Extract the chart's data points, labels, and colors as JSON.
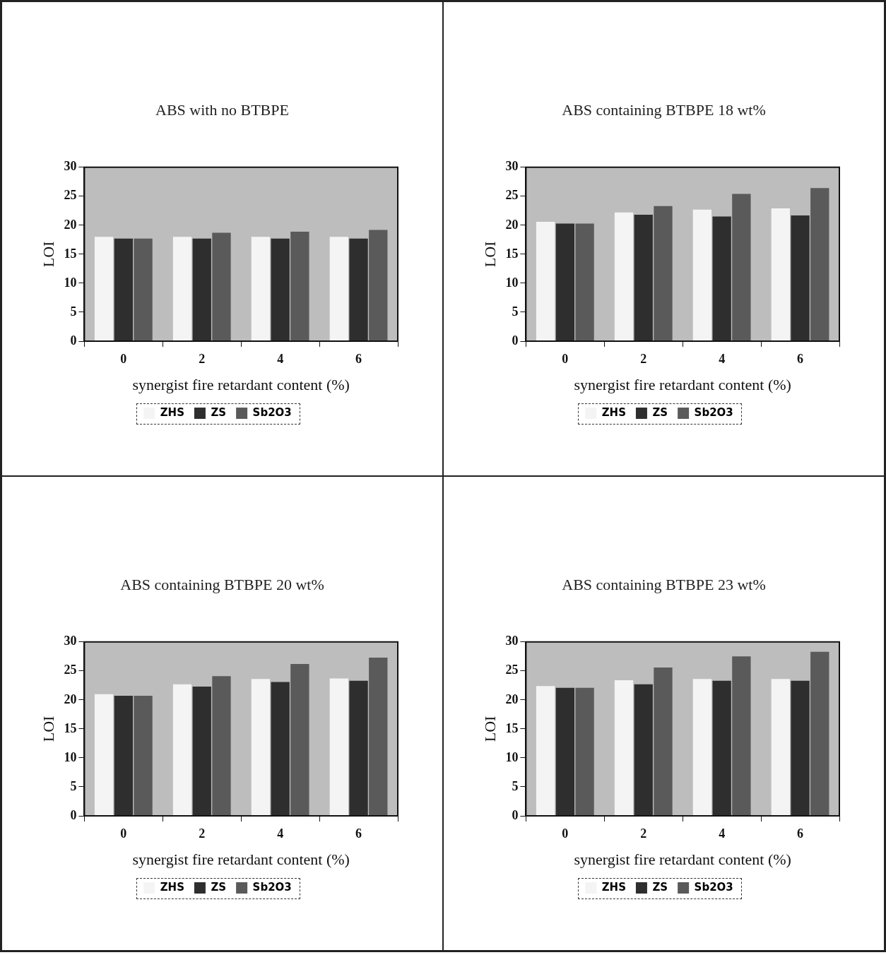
{
  "chart_data": [
    {
      "type": "bar",
      "title": "ABS with no BTBPE",
      "xlabel": "synergist fire retardant content (%)",
      "ylabel": "LOI",
      "categories": [
        "0",
        "2",
        "4",
        "6"
      ],
      "series": [
        {
          "name": "ZHS",
          "color": "#f4f4f4",
          "values": [
            18.0,
            18.0,
            18.0,
            18.0
          ]
        },
        {
          "name": "ZS",
          "color": "#2e2e2e",
          "values": [
            17.7,
            17.7,
            17.7,
            17.7
          ]
        },
        {
          "name": "Sb2O3",
          "color": "#5a5a5a",
          "values": [
            17.7,
            18.7,
            18.9,
            19.2
          ]
        }
      ],
      "ylim": [
        0,
        30
      ],
      "yticks": [
        0,
        5,
        10,
        15,
        20,
        25,
        30
      ],
      "grid": false,
      "legend": "bottom"
    },
    {
      "type": "bar",
      "title": "ABS containing BTBPE 18 wt%",
      "xlabel": "synergist fire retardant content (%)",
      "ylabel": "LOI",
      "categories": [
        "0",
        "2",
        "4",
        "6"
      ],
      "series": [
        {
          "name": "ZHS",
          "color": "#f4f4f4",
          "values": [
            20.6,
            22.2,
            22.7,
            22.9
          ]
        },
        {
          "name": "ZS",
          "color": "#2e2e2e",
          "values": [
            20.3,
            21.8,
            21.5,
            21.7
          ]
        },
        {
          "name": "Sb2O3",
          "color": "#5a5a5a",
          "values": [
            20.3,
            23.3,
            25.4,
            26.4
          ]
        }
      ],
      "ylim": [
        0,
        30
      ],
      "yticks": [
        0,
        5,
        10,
        15,
        20,
        25,
        30
      ],
      "grid": false,
      "legend": "bottom"
    },
    {
      "type": "bar",
      "title": "ABS containing BTBPE 20 wt%",
      "xlabel": "synergist fire retardant content (%)",
      "ylabel": "LOI",
      "categories": [
        "0",
        "2",
        "4",
        "6"
      ],
      "series": [
        {
          "name": "ZHS",
          "color": "#f4f4f4",
          "values": [
            21.0,
            22.7,
            23.6,
            23.7
          ]
        },
        {
          "name": "ZS",
          "color": "#2e2e2e",
          "values": [
            20.7,
            22.3,
            23.1,
            23.3
          ]
        },
        {
          "name": "Sb2O3",
          "color": "#5a5a5a",
          "values": [
            20.7,
            24.1,
            26.2,
            27.3
          ]
        }
      ],
      "ylim": [
        0,
        30
      ],
      "yticks": [
        0,
        5,
        10,
        15,
        20,
        25,
        30
      ],
      "grid": false,
      "legend": "bottom"
    },
    {
      "type": "bar",
      "title": "ABS containing BTBPE 23 wt%",
      "xlabel": "synergist fire retardant content (%)",
      "ylabel": "LOI",
      "categories": [
        "0",
        "2",
        "4",
        "6"
      ],
      "series": [
        {
          "name": "ZHS",
          "color": "#f4f4f4",
          "values": [
            22.4,
            23.4,
            23.6,
            23.6
          ]
        },
        {
          "name": "ZS",
          "color": "#2e2e2e",
          "values": [
            22.1,
            22.7,
            23.3,
            23.3
          ]
        },
        {
          "name": "Sb2O3",
          "color": "#5a5a5a",
          "values": [
            22.1,
            25.6,
            27.5,
            28.3
          ]
        }
      ],
      "ylim": [
        0,
        30
      ],
      "yticks": [
        0,
        5,
        10,
        15,
        20,
        25,
        30
      ],
      "grid": false,
      "legend": "bottom"
    }
  ]
}
